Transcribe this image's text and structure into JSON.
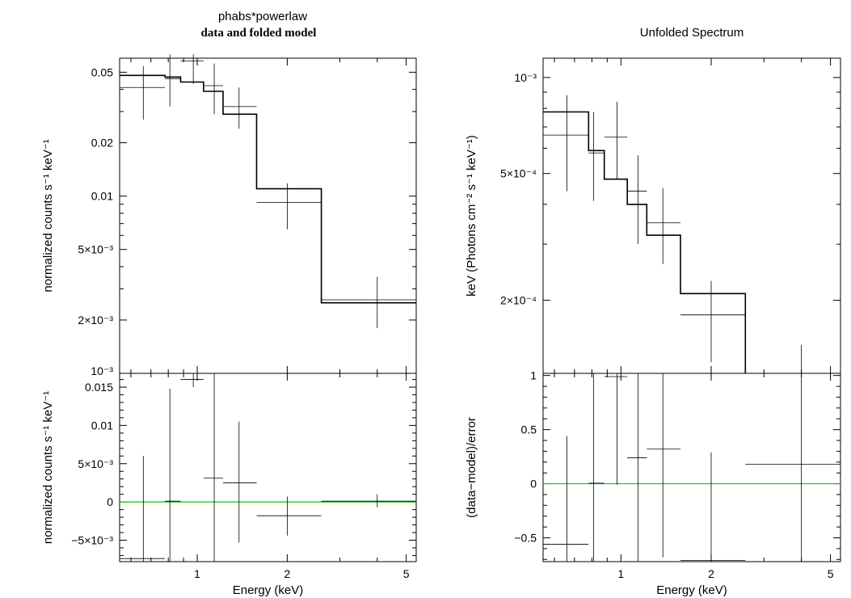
{
  "colors": {
    "model": "#000000",
    "data": "#000000",
    "zero_line": "#00cc00",
    "background": "#ffffff"
  },
  "chart_data": [
    {
      "type": "line",
      "panel": "left-top",
      "title": "phabs*powerlaw",
      "subtitle": "data and folded model",
      "xlabel": "",
      "ylabel": "normalized counts s⁻¹ keV⁻¹",
      "xscale": "log",
      "yscale": "log",
      "xlim": [
        0.55,
        5.4
      ],
      "ylim": [
        0.001,
        0.06
      ],
      "yticks": [
        {
          "value": 0.05,
          "label": "0.05"
        },
        {
          "value": 0.02,
          "label": "0.02"
        },
        {
          "value": 0.01,
          "label": "0.01"
        },
        {
          "value": 0.005,
          "label": "5×10⁻³"
        },
        {
          "value": 0.002,
          "label": "2×10⁻³"
        },
        {
          "value": 0.001,
          "label": "10⁻³"
        }
      ],
      "data_points": [
        {
          "x": 0.66,
          "xlo": 0.55,
          "xhi": 0.78,
          "y": 0.041,
          "ylo": 0.027,
          "yhi": 0.054
        },
        {
          "x": 0.81,
          "xlo": 0.78,
          "xhi": 0.88,
          "y": 0.046,
          "ylo": 0.032,
          "yhi": 0.063
        },
        {
          "x": 0.97,
          "xlo": 0.88,
          "xhi": 1.05,
          "y": 0.058,
          "ylo": 0.043,
          "yhi": 0.063
        },
        {
          "x": 1.14,
          "xlo": 1.05,
          "xhi": 1.22,
          "y": 0.042,
          "ylo": 0.029,
          "yhi": 0.056
        },
        {
          "x": 1.38,
          "xlo": 1.22,
          "xhi": 1.58,
          "y": 0.032,
          "ylo": 0.024,
          "yhi": 0.041
        },
        {
          "x": 2.0,
          "xlo": 1.58,
          "xhi": 2.6,
          "y": 0.0092,
          "ylo": 0.0065,
          "yhi": 0.0118
        },
        {
          "x": 4.0,
          "xlo": 2.6,
          "xhi": 5.4,
          "y": 0.0026,
          "ylo": 0.0018,
          "yhi": 0.0035
        }
      ],
      "model_steps": [
        {
          "xlo": 0.55,
          "xhi": 0.78,
          "y": 0.048
        },
        {
          "xlo": 0.78,
          "xhi": 0.88,
          "y": 0.047
        },
        {
          "xlo": 0.88,
          "xhi": 1.05,
          "y": 0.044
        },
        {
          "xlo": 1.05,
          "xhi": 1.22,
          "y": 0.039
        },
        {
          "xlo": 1.22,
          "xhi": 1.58,
          "y": 0.029
        },
        {
          "xlo": 1.58,
          "xhi": 2.6,
          "y": 0.011
        },
        {
          "xlo": 2.6,
          "xhi": 5.4,
          "y": 0.0025
        }
      ]
    },
    {
      "type": "scatter",
      "panel": "left-bottom",
      "xlabel": "Energy (keV)",
      "ylabel": "normalized counts s⁻¹ keV⁻¹",
      "xscale": "log",
      "yscale": "linear",
      "xlim": [
        0.55,
        5.4
      ],
      "ylim": [
        -0.0078,
        0.0168
      ],
      "xticks": [
        {
          "value": 1,
          "label": "1"
        },
        {
          "value": 2,
          "label": "2"
        },
        {
          "value": 5,
          "label": "5"
        }
      ],
      "yticks": [
        {
          "value": 0.015,
          "label": "0.015"
        },
        {
          "value": 0.01,
          "label": "0.01"
        },
        {
          "value": 0.005,
          "label": "5×10⁻³"
        },
        {
          "value": 0,
          "label": "0"
        },
        {
          "value": -0.005,
          "label": "−5×10⁻³"
        }
      ],
      "zero_line": 0,
      "data_points": [
        {
          "x": 0.66,
          "xlo": 0.55,
          "xhi": 0.78,
          "y": -0.0074,
          "ylo": -0.0078,
          "yhi": 0.006
        },
        {
          "x": 0.81,
          "xlo": 0.78,
          "xhi": 0.88,
          "y": 0.0001,
          "ylo": -0.0078,
          "yhi": 0.0148
        },
        {
          "x": 0.97,
          "xlo": 0.88,
          "xhi": 1.05,
          "y": 0.016,
          "ylo": 0.015,
          "yhi": 0.0168
        },
        {
          "x": 1.14,
          "xlo": 1.05,
          "xhi": 1.22,
          "y": 0.0031,
          "ylo": -0.0078,
          "yhi": 0.0168
        },
        {
          "x": 1.38,
          "xlo": 1.22,
          "xhi": 1.58,
          "y": 0.0025,
          "ylo": -0.0053,
          "yhi": 0.0105
        },
        {
          "x": 2.0,
          "xlo": 1.58,
          "xhi": 2.6,
          "y": -0.0018,
          "ylo": -0.0044,
          "yhi": 0.0007
        },
        {
          "x": 4.0,
          "xlo": 2.6,
          "xhi": 5.4,
          "y": 0.0001,
          "ylo": -0.0007,
          "yhi": 0.001
        }
      ]
    },
    {
      "type": "line",
      "panel": "right-top",
      "title": "Unfolded Spectrum",
      "xlabel": "",
      "ylabel": "keV (Photons cm⁻² s⁻¹ keV⁻¹)",
      "xscale": "log",
      "yscale": "log",
      "xlim": [
        0.55,
        5.4
      ],
      "ylim": [
        0.000118,
        0.00115
      ],
      "yticks": [
        {
          "value": 0.001,
          "label": "10⁻³"
        },
        {
          "value": 0.0005,
          "label": "5×10⁻⁴"
        },
        {
          "value": 0.0002,
          "label": "2×10⁻⁴"
        }
      ],
      "data_points": [
        {
          "x": 0.66,
          "xlo": 0.55,
          "xhi": 0.78,
          "y": 0.00066,
          "ylo": 0.00044,
          "yhi": 0.00088
        },
        {
          "x": 0.81,
          "xlo": 0.78,
          "xhi": 0.88,
          "y": 0.00058,
          "ylo": 0.00041,
          "yhi": 0.00078
        },
        {
          "x": 0.97,
          "xlo": 0.88,
          "xhi": 1.05,
          "y": 0.00065,
          "ylo": 0.00048,
          "yhi": 0.00084
        },
        {
          "x": 1.14,
          "xlo": 1.05,
          "xhi": 1.22,
          "y": 0.00044,
          "ylo": 0.0003,
          "yhi": 0.00057
        },
        {
          "x": 1.38,
          "xlo": 1.22,
          "xhi": 1.58,
          "y": 0.00035,
          "ylo": 0.00026,
          "yhi": 0.00045
        },
        {
          "x": 2.0,
          "xlo": 1.58,
          "xhi": 2.6,
          "y": 0.00018,
          "ylo": 0.000128,
          "yhi": 0.00023
        },
        {
          "x": 4.0,
          "xlo": 2.6,
          "xhi": 5.4,
          "y": 0.000118,
          "ylo": 0.000118,
          "yhi": 0.000145
        }
      ],
      "model_steps": [
        {
          "xlo": 0.55,
          "xhi": 0.78,
          "y": 0.00078
        },
        {
          "xlo": 0.78,
          "xhi": 0.88,
          "y": 0.00059
        },
        {
          "xlo": 0.88,
          "xhi": 1.05,
          "y": 0.00048
        },
        {
          "xlo": 1.05,
          "xhi": 1.22,
          "y": 0.0004
        },
        {
          "xlo": 1.22,
          "xhi": 1.58,
          "y": 0.00032
        },
        {
          "xlo": 1.58,
          "xhi": 2.6,
          "y": 0.00021
        },
        {
          "xlo": 2.6,
          "xhi": 2.6,
          "y": 0.000118
        }
      ]
    },
    {
      "type": "scatter",
      "panel": "right-bottom",
      "xlabel": "Energy (keV)",
      "ylabel": "(data−model)/error",
      "xscale": "log",
      "yscale": "linear",
      "xlim": [
        0.55,
        5.4
      ],
      "ylim": [
        -0.72,
        1.02
      ],
      "xticks": [
        {
          "value": 1,
          "label": "1"
        },
        {
          "value": 2,
          "label": "2"
        },
        {
          "value": 5,
          "label": "5"
        }
      ],
      "yticks": [
        {
          "value": 1,
          "label": "1"
        },
        {
          "value": 0.5,
          "label": "0.5"
        },
        {
          "value": 0,
          "label": "0"
        },
        {
          "value": -0.5,
          "label": "−0.5"
        }
      ],
      "zero_line": 0,
      "data_points": [
        {
          "x": 0.66,
          "xlo": 0.55,
          "xhi": 0.78,
          "y": -0.56,
          "ylo": -0.72,
          "yhi": 0.44
        },
        {
          "x": 0.81,
          "xlo": 0.78,
          "xhi": 0.88,
          "y": 0.005,
          "ylo": -0.72,
          "yhi": 1.02
        },
        {
          "x": 0.97,
          "xlo": 0.88,
          "xhi": 1.05,
          "y": 0.99,
          "ylo": -0.01,
          "yhi": 1.02
        },
        {
          "x": 1.14,
          "xlo": 1.05,
          "xhi": 1.22,
          "y": 0.24,
          "ylo": -0.72,
          "yhi": 1.02
        },
        {
          "x": 1.38,
          "xlo": 1.22,
          "xhi": 1.58,
          "y": 0.32,
          "ylo": -0.68,
          "yhi": 1.02
        },
        {
          "x": 2.0,
          "xlo": 1.58,
          "xhi": 2.6,
          "y": -0.71,
          "ylo": -0.72,
          "yhi": 0.29
        },
        {
          "x": 4.0,
          "xlo": 2.6,
          "xhi": 5.4,
          "y": 0.18,
          "ylo": -0.72,
          "yhi": 1.02
        }
      ]
    }
  ]
}
